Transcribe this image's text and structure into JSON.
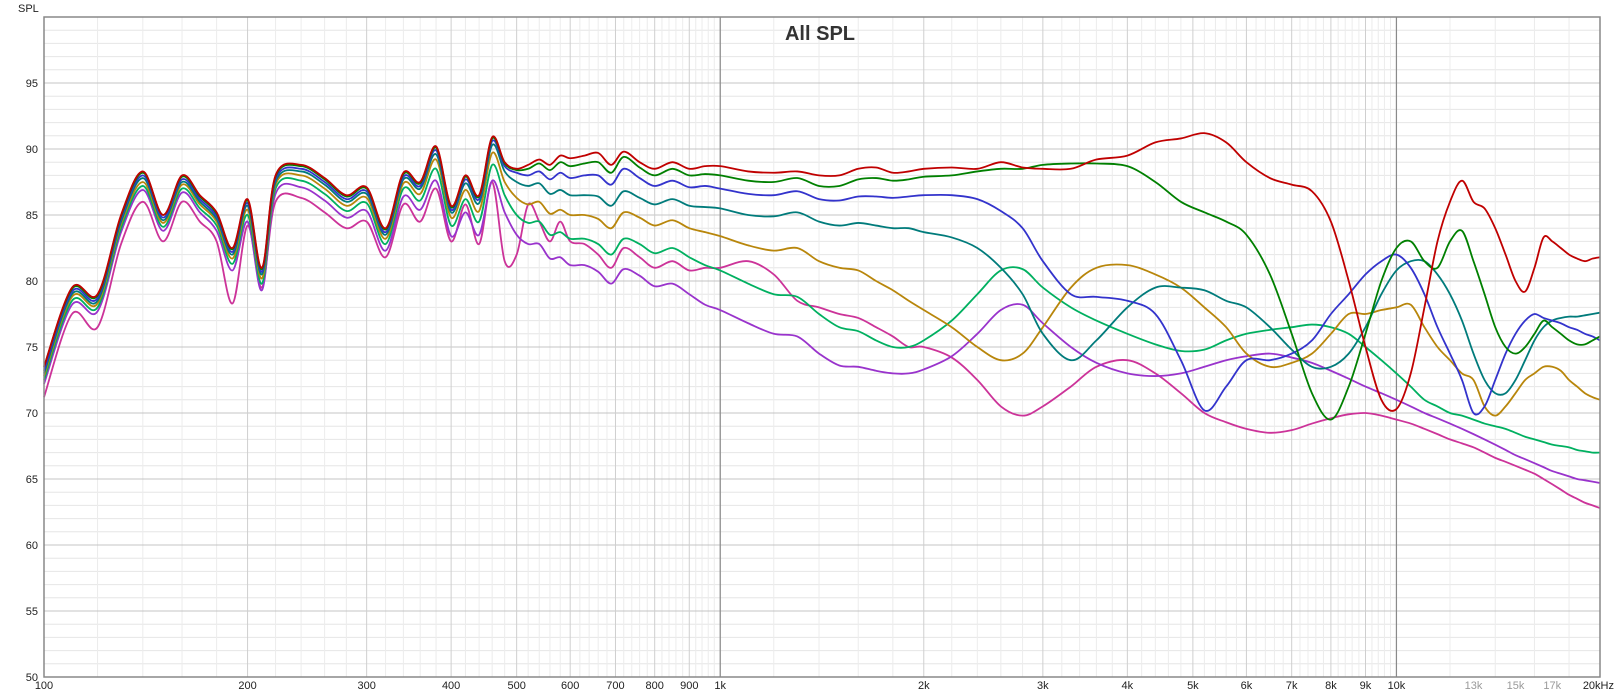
{
  "chart_data": {
    "type": "line",
    "title": "All SPL",
    "ylabel": "SPL",
    "xlabel": "",
    "x_scale": "log",
    "xlim": [
      100,
      20000
    ],
    "ylim": [
      50,
      100
    ],
    "grid": true,
    "legend": "none",
    "y_ticks": [
      50,
      55,
      60,
      65,
      70,
      75,
      80,
      85,
      90,
      95
    ],
    "x_ticks": [
      {
        "value": 100,
        "label": "100",
        "faint": false
      },
      {
        "value": 200,
        "label": "200",
        "faint": false
      },
      {
        "value": 300,
        "label": "300",
        "faint": false
      },
      {
        "value": 400,
        "label": "400",
        "faint": false
      },
      {
        "value": 500,
        "label": "500",
        "faint": false
      },
      {
        "value": 600,
        "label": "600",
        "faint": false
      },
      {
        "value": 700,
        "label": "700",
        "faint": false
      },
      {
        "value": 800,
        "label": "800",
        "faint": false
      },
      {
        "value": 900,
        "label": "900",
        "faint": false
      },
      {
        "value": 1000,
        "label": "1k",
        "faint": false
      },
      {
        "value": 2000,
        "label": "2k",
        "faint": false
      },
      {
        "value": 3000,
        "label": "3k",
        "faint": false
      },
      {
        "value": 4000,
        "label": "4k",
        "faint": false
      },
      {
        "value": 5000,
        "label": "5k",
        "faint": false
      },
      {
        "value": 6000,
        "label": "6k",
        "faint": false
      },
      {
        "value": 7000,
        "label": "7k",
        "faint": false
      },
      {
        "value": 8000,
        "label": "8k",
        "faint": false
      },
      {
        "value": 9000,
        "label": "9k",
        "faint": false
      },
      {
        "value": 10000,
        "label": "10k",
        "faint": false
      },
      {
        "value": 13000,
        "label": "13k",
        "faint": true
      },
      {
        "value": 15000,
        "label": "15k",
        "faint": true
      },
      {
        "value": 17000,
        "label": "17k",
        "faint": true
      },
      {
        "value": 20000,
        "label": "20kHz",
        "faint": false
      }
    ],
    "x": [
      100,
      110,
      120,
      130,
      140,
      150,
      160,
      170,
      180,
      190,
      200,
      210,
      220,
      240,
      260,
      280,
      300,
      320,
      340,
      360,
      380,
      400,
      420,
      440,
      460,
      480,
      500,
      520,
      540,
      560,
      580,
      600,
      630,
      660,
      690,
      720,
      760,
      800,
      850,
      900,
      950,
      1000,
      1100,
      1200,
      1300,
      1400,
      1500,
      1600,
      1700,
      1800,
      1900,
      2000,
      2200,
      2400,
      2600,
      2800,
      3000,
      3300,
      3600,
      4000,
      4400,
      4800,
      5200,
      5600,
      6000,
      6500,
      7000,
      7500,
      8000,
      8500,
      9000,
      9500,
      10000,
      10500,
      11000,
      11500,
      12000,
      12500,
      13000,
      13500,
      14000,
      14500,
      15000,
      15500,
      16000,
      16500,
      17000,
      17500,
      18000,
      18500,
      19000,
      19500,
      20000
    ],
    "series": [
      {
        "color": "#c00000",
        "values": [
          73.5,
          79.5,
          79,
          85,
          88.3,
          85,
          88,
          86.5,
          85.2,
          82.5,
          86.2,
          81,
          88,
          88.8,
          87.8,
          86.5,
          87.1,
          84,
          88.2,
          87.5,
          90.2,
          85.7,
          88,
          86.5,
          90.9,
          89,
          88.5,
          88.8,
          89.2,
          88.8,
          89.5,
          89.3,
          89.5,
          89.7,
          88.8,
          89.8,
          89,
          88.5,
          89,
          88.5,
          88.7,
          88.7,
          88.3,
          88.2,
          88.3,
          88,
          88,
          88.5,
          88.6,
          88.2,
          88.3,
          88.5,
          88.6,
          88.5,
          89,
          88.6,
          88.5,
          88.5,
          89.2,
          89.5,
          90.5,
          90.8,
          91.2,
          90.5,
          89,
          87.8,
          87.3,
          86.8,
          84.5,
          80,
          75,
          71,
          70.3,
          73,
          78,
          83,
          86,
          87.6,
          86,
          85.5,
          84,
          82,
          80,
          79.2,
          81,
          83.3,
          83,
          82.5,
          82,
          81.7,
          81.5,
          81.7,
          81.8
        ]
      },
      {
        "color": "#008000",
        "values": [
          73.5,
          79.4,
          78.9,
          84.9,
          88.2,
          85,
          87.9,
          86.4,
          85.1,
          82.4,
          86.1,
          80.9,
          87.9,
          88.7,
          87.7,
          86.4,
          87,
          83.9,
          88.1,
          87.4,
          90.1,
          85.6,
          87.9,
          86.4,
          90.8,
          88.9,
          88.4,
          88.5,
          88.9,
          88.4,
          89,
          88.7,
          88.9,
          89,
          88.2,
          89.4,
          88.6,
          88,
          88.5,
          88,
          88.1,
          88,
          87.6,
          87.5,
          87.8,
          87.2,
          87.2,
          87.7,
          87.8,
          87.6,
          87.7,
          87.9,
          88,
          88.3,
          88.5,
          88.5,
          88.8,
          88.9,
          88.9,
          88.7,
          87.5,
          86,
          85.2,
          84.5,
          83.5,
          80.5,
          76,
          71.5,
          69.5,
          72,
          76,
          80,
          82.5,
          83,
          81.5,
          81,
          83,
          83.8,
          81.5,
          79,
          76.5,
          75,
          74.5,
          75,
          76,
          77,
          76.5,
          76,
          75.5,
          75.2,
          75.2,
          75.5,
          75.8
        ]
      },
      {
        "color": "#3333cc",
        "values": [
          73.2,
          79.2,
          78.7,
          84.7,
          88,
          84.8,
          87.7,
          86.2,
          84.9,
          82.2,
          85.9,
          80.7,
          87.7,
          88.5,
          87.5,
          86.2,
          86.8,
          83.7,
          87.9,
          87.2,
          89.9,
          85.4,
          87.7,
          86.2,
          90.6,
          88.7,
          88.2,
          88,
          88.3,
          87.7,
          88.2,
          87.8,
          88,
          88,
          87.3,
          88.5,
          87.8,
          87.2,
          87.6,
          87.1,
          87.2,
          87,
          86.6,
          86.5,
          86.8,
          86.2,
          86.1,
          86.4,
          86.4,
          86.3,
          86.4,
          86.5,
          86.5,
          86.2,
          85.3,
          84,
          81.5,
          79,
          78.8,
          78.5,
          77.5,
          74,
          70.2,
          72,
          74,
          74,
          74.5,
          75.5,
          77.5,
          79,
          80.5,
          81.5,
          82,
          81,
          79,
          76.5,
          74.5,
          72.5,
          70,
          70.5,
          72.5,
          74.5,
          76,
          77,
          77.5,
          77.2,
          77,
          76.8,
          76.5,
          76.3,
          76,
          75.8,
          75.5
        ]
      },
      {
        "color": "#007b7b",
        "values": [
          73,
          79,
          78.5,
          84.5,
          87.8,
          84.6,
          87.5,
          86,
          84.7,
          82,
          85.7,
          80.5,
          87.5,
          88.3,
          87.3,
          86,
          86.6,
          83.5,
          87.7,
          87,
          89.6,
          85.2,
          87.4,
          85.9,
          90.3,
          88.3,
          87.5,
          87.2,
          87.4,
          86.6,
          86.9,
          86.5,
          86.5,
          86.4,
          85.7,
          86.8,
          86.3,
          85.8,
          86.2,
          85.7,
          85.6,
          85.5,
          85,
          84.9,
          85.2,
          84.5,
          84.2,
          84.4,
          84.2,
          84,
          84,
          83.7,
          83.3,
          82.5,
          81,
          79,
          76,
          74,
          75.5,
          78,
          79.5,
          79.5,
          79.3,
          78.5,
          78,
          76.5,
          74.8,
          73.5,
          73.5,
          74.5,
          76.5,
          79,
          80.8,
          81.5,
          81.5,
          80.5,
          79,
          77,
          74.5,
          72.5,
          71.5,
          71.5,
          72.5,
          74,
          75.5,
          76.5,
          77,
          77.2,
          77.3,
          77.3,
          77.4,
          77.5,
          77.6
        ]
      },
      {
        "color": "#b8860b",
        "values": [
          72.8,
          78.8,
          78.3,
          84.3,
          87.5,
          84.4,
          87.3,
          85.8,
          84.5,
          81.7,
          85.4,
          80.2,
          87.3,
          88,
          87,
          85.7,
          86.3,
          83.2,
          87.4,
          86.6,
          89.2,
          84.8,
          86.9,
          85.3,
          89.7,
          87.5,
          86.3,
          85.8,
          86,
          85.1,
          85.4,
          85,
          85,
          84.7,
          84,
          85.2,
          84.8,
          84.2,
          84.6,
          84,
          83.7,
          83.4,
          82.7,
          82.3,
          82.5,
          81.5,
          81,
          80.8,
          80,
          79.3,
          78.5,
          77.8,
          76.5,
          75,
          74,
          74.5,
          76.5,
          79.5,
          81,
          81.2,
          80.5,
          79.5,
          78,
          76.5,
          74.5,
          73.5,
          73.8,
          74.5,
          76,
          77.5,
          77.5,
          77.8,
          78,
          78.2,
          76.5,
          75,
          74,
          73,
          72.5,
          70.5,
          69.8,
          70.5,
          71.5,
          72.5,
          73,
          73.5,
          73.5,
          73.2,
          72.5,
          72,
          71.5,
          71.2,
          71
        ]
      },
      {
        "color": "#00b060",
        "values": [
          72.5,
          78.5,
          78,
          84,
          87.2,
          84.1,
          87,
          85.5,
          84.2,
          81.3,
          85,
          79.8,
          87,
          87.6,
          86.6,
          85.3,
          85.9,
          82.8,
          87,
          86.1,
          88.5,
          84.2,
          86.2,
          84.5,
          88.8,
          86.5,
          85,
          84.4,
          84.5,
          83.5,
          83.7,
          83.2,
          83.2,
          82.8,
          82,
          83.2,
          82.8,
          82.1,
          82.5,
          81.8,
          81.2,
          80.8,
          79.8,
          79,
          78.8,
          77.5,
          76.5,
          76.2,
          75.5,
          75,
          75,
          75.5,
          77,
          79,
          80.8,
          80.9,
          79.5,
          78,
          77,
          76,
          75.2,
          74.7,
          74.8,
          75.5,
          76,
          76.3,
          76.5,
          76.7,
          76.5,
          76,
          75,
          74,
          73,
          72,
          71,
          70.5,
          70,
          69.8,
          69.5,
          69.2,
          69,
          68.8,
          68.5,
          68.2,
          68,
          67.8,
          67.6,
          67.5,
          67.4,
          67.2,
          67.1,
          67,
          67
        ]
      },
      {
        "color": "#9933cc",
        "values": [
          72.2,
          78.2,
          77.7,
          83.7,
          86.9,
          83.8,
          86.7,
          85.2,
          83.8,
          80.8,
          84.5,
          79.3,
          86.6,
          87.1,
          86.1,
          84.8,
          85.3,
          82.3,
          86.4,
          85.4,
          87.6,
          83.4,
          85.2,
          83.5,
          87.6,
          85.2,
          83.5,
          82.8,
          82.8,
          81.7,
          81.8,
          81.2,
          81.2,
          80.7,
          79.8,
          80.9,
          80.4,
          79.6,
          79.8,
          79,
          78.2,
          77.8,
          76.8,
          76,
          75.8,
          74.5,
          73.6,
          73.5,
          73.2,
          73,
          73,
          73.3,
          74.3,
          76,
          77.8,
          78.2,
          76.8,
          75,
          73.8,
          73,
          72.8,
          73,
          73.5,
          74,
          74.3,
          74.5,
          74.2,
          73.8,
          73.2,
          72.6,
          72,
          71.5,
          71,
          70.5,
          70,
          69.6,
          69.2,
          68.8,
          68.4,
          68,
          67.6,
          67.2,
          66.8,
          66.5,
          66.2,
          65.9,
          65.6,
          65.4,
          65.2,
          65,
          64.9,
          64.8,
          64.7
        ]
      },
      {
        "color": "#cc3399",
        "values": [
          71.2,
          77.5,
          76.5,
          82.8,
          86,
          83,
          86,
          84.5,
          83,
          78.3,
          84.2,
          79.5,
          86,
          86.3,
          85.2,
          84,
          84.5,
          81.8,
          85.8,
          84.5,
          87,
          83,
          85.8,
          82.8,
          87.5,
          81.5,
          82,
          85.8,
          84.5,
          83,
          84.5,
          83,
          82.8,
          82,
          81,
          82.5,
          81.8,
          81,
          81.5,
          80.8,
          81,
          81,
          81.5,
          80.5,
          78.5,
          78,
          77.5,
          77.2,
          76.5,
          75.8,
          75,
          75,
          74.2,
          72.5,
          70.5,
          69.8,
          70.5,
          72,
          73.5,
          74,
          73,
          71.5,
          70,
          69.3,
          68.8,
          68.5,
          68.7,
          69.2,
          69.6,
          69.9,
          70,
          69.8,
          69.5,
          69.2,
          68.8,
          68.4,
          68,
          67.7,
          67.4,
          67,
          66.6,
          66.3,
          66,
          65.7,
          65.4,
          65,
          64.6,
          64.2,
          63.8,
          63.5,
          63.2,
          63,
          62.8
        ]
      }
    ]
  }
}
